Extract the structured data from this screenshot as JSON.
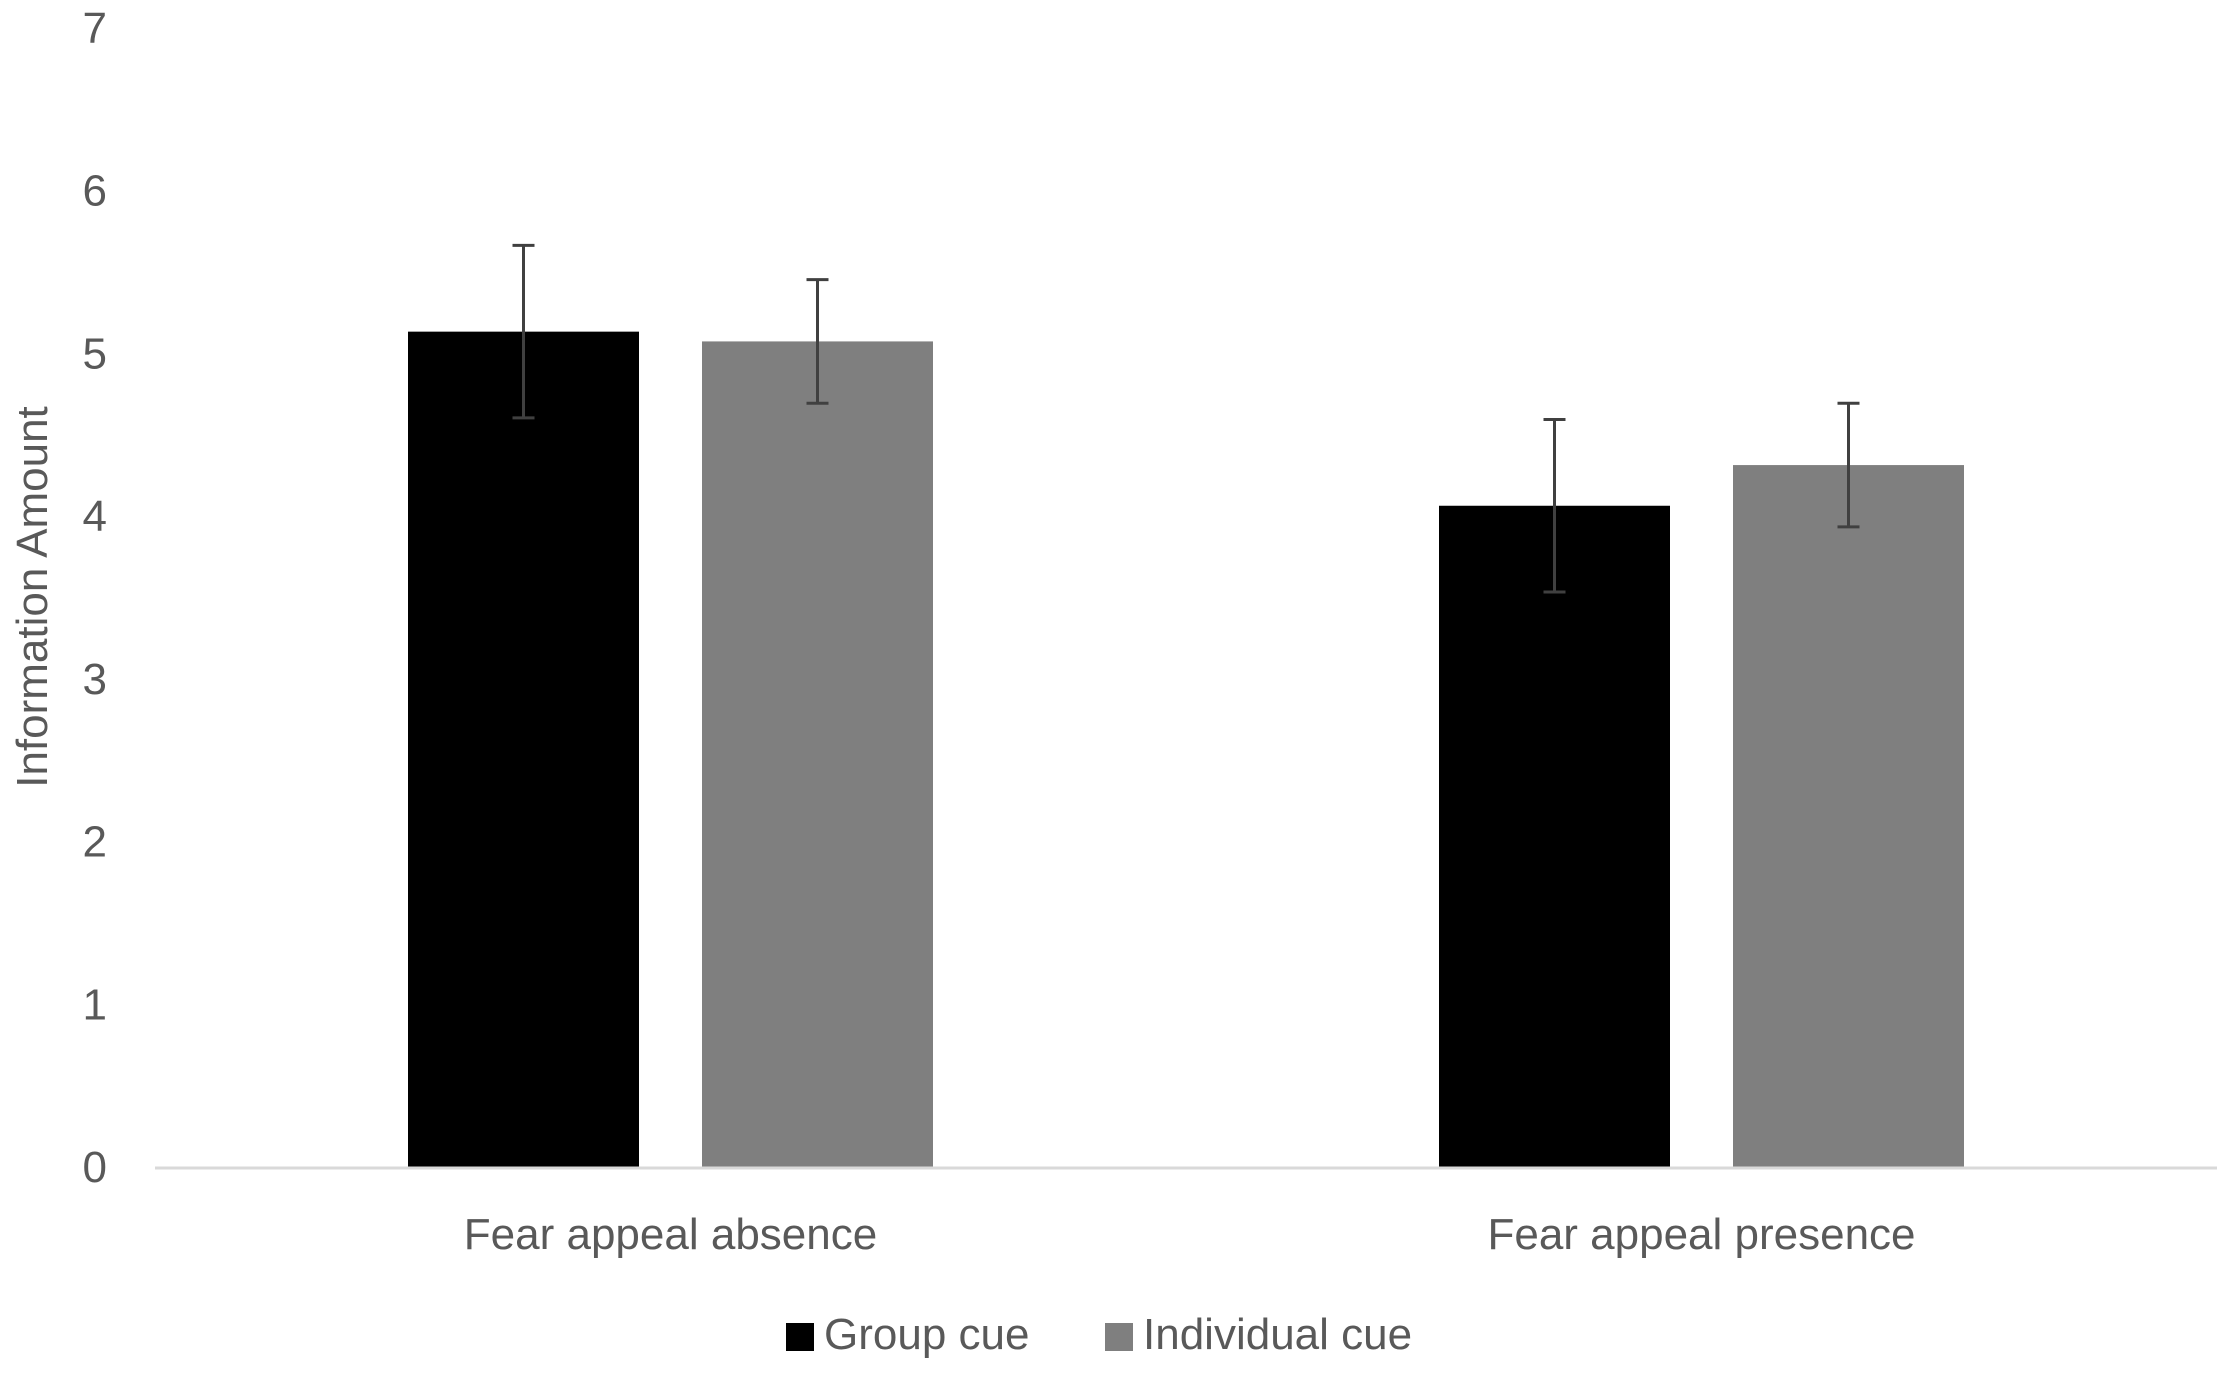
{
  "chart_data": {
    "type": "bar",
    "title": "",
    "xlabel": "",
    "ylabel": "Information Amount",
    "ylim": [
      0,
      7
    ],
    "yticks": [
      0,
      1,
      2,
      3,
      4,
      5,
      6,
      7
    ],
    "categories": [
      "Fear appeal absence",
      "Fear appeal presence"
    ],
    "series": [
      {
        "name": "Group cue",
        "color": "#000000",
        "values": [
          5.14,
          4.07
        ],
        "error": [
          0.53,
          0.53
        ]
      },
      {
        "name": "Individual cue",
        "color": "#7f7f7f",
        "values": [
          5.08,
          4.32
        ],
        "error": [
          0.38,
          0.38
        ]
      }
    ],
    "grid": false,
    "legend": "bottom-center",
    "colors": {
      "axis": "#d9d9d9",
      "text": "#595959",
      "errorbar": "#404040"
    }
  }
}
